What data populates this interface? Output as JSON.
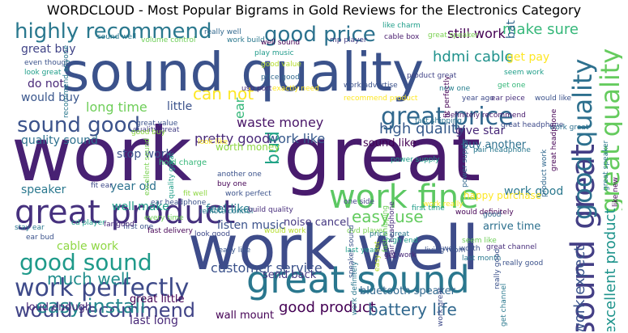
{
  "title": "WORDCLOUD - Most Popular Bigrams in Gold Reviews for the Electronics Category",
  "words": {
    "w1": "sound quality",
    "w2": "work",
    "w3": "great",
    "w4": "work well",
    "w5": "great product",
    "w6": "great sound",
    "w7": "work fine",
    "w8": "work perfectly",
    "w9": "would recommend",
    "w10": "good sound",
    "w11": "sound good",
    "w12": "great price",
    "w13": "highly recommend",
    "w14": "good price",
    "w15": "easy install",
    "w16": "much well",
    "w17": "easy use",
    "w18": "sound great",
    "w19": "good quality",
    "w20": "great quality",
    "w21": "bud",
    "w22": "excellent product",
    "w23": "work expect",
    "w24": "can not",
    "w25": "customer service",
    "w26": "good product",
    "w27": "ear",
    "w28": "battery life",
    "w29": "hdmi cable",
    "w30": "still work",
    "w31": "make sure",
    "w32": "get pay",
    "w33": "high quality",
    "w34": "give star",
    "w35": "waste money",
    "w36": "pretty good",
    "w37": "work like",
    "w38": "stop work",
    "w39": "long time",
    "w40": "little",
    "w41": "quality sound",
    "w42": "year old",
    "w43": "well make",
    "w44": "speaker",
    "w45": "do not",
    "w46": "would buy",
    "w47": "cable work",
    "w48": "work good",
    "w49": "listen music",
    "w50": "feel like",
    "w51": "last long",
    "w52": "great buy",
    "w53": "battery last",
    "w54": "happy purchase",
    "w55": "arrive time",
    "w56": "bluetooth speaker",
    "w57": "sound like",
    "w58": "buy another",
    "w59": "noise cancel",
    "w60": "send back",
    "w61": "wall mount",
    "w62": "great little",
    "w63": "loud enough",
    "w64": "worth money",
    "w65": "hold charge"
  },
  "small": {
    "s1": "sound well",
    "s2": "volume control",
    "s3": "really well",
    "s4": "work build",
    "s5": "well sound",
    "s6": "play music",
    "s7": "good value",
    "s8": "price good",
    "s9": "exactly need",
    "s10": "usb port",
    "s11": "mp player",
    "s12": "work advertise",
    "s13": "recommend product",
    "s14": "like charm",
    "s15": "cable box",
    "s16": "product great",
    "s17": "great speaker",
    "s18": "new one",
    "s19": "year ago",
    "s20": "get one",
    "s21": "seem work",
    "s22": "ear piece",
    "s23": "would like",
    "s24": "definitely recommend",
    "s25": "fast shipping",
    "s26": "power supply",
    "s27": "great headphone",
    "s28": "pair headphone",
    "s29": "work great",
    "s30": "look great",
    "s31": "even though",
    "s32": "quality great",
    "s33": "fit ear",
    "s34": "great value",
    "s35": "good buy",
    "s36": "look like",
    "s37": "another one",
    "s38": "buy one",
    "s39": "work perfect",
    "s40": "use one",
    "s41": "remote control",
    "s42": "fit well",
    "s43": "ear headphone",
    "s44": "every time",
    "s45": "first one",
    "s46": "far good",
    "s47": "stay ear",
    "s48": "cd player",
    "s49": "fast delivery",
    "s50": "look good",
    "s51": "really like",
    "s52": "build quality",
    "s53": "would work",
    "s54": "one side",
    "s55": "dvd player",
    "s56": "price great",
    "s57": "high end",
    "s58": "last year",
    "s59": "get work",
    "s60": "living room",
    "s61": "would definitely",
    "s62": "work really",
    "s63": "good",
    "s64": "first time",
    "s65": "well worth",
    "s66": "seem like",
    "s67": "last month",
    "s68": "great channel",
    "s69": "really good",
    "s70": "work",
    "s71": "speaker sound",
    "s72": "hdmi",
    "s73": "get",
    "s74": "ear bud",
    "s75": "work",
    "s76": "wall mount",
    "s77": "great",
    "s78": "first time",
    "s79": "last month",
    "s80": "cd player",
    "s81": "well worth",
    "s82": "last year",
    "s83": "well",
    "s84": "good",
    "s85": "great",
    "s86": "stay ear",
    "s87": "great",
    "s88": "work"
  },
  "rot": {
    "sr1": "recommend anyone",
    "sr2": "great buy",
    "sr3": "excellent sound",
    "sr4": "fit ear",
    "sr5": "quality great",
    "sr6": "another one",
    "sr7": "fit perfectly",
    "sr8": "fast shipping",
    "sr9": "speaker sound",
    "sr10": "easy set",
    "sr11": "pair headphone",
    "sr12": "work great",
    "sr13": "get channel",
    "sr14": "product work",
    "sr15": "great headphone",
    "sr16": "good quality",
    "sr17": "great speaker",
    "sr18": "like new",
    "sr19": "great price",
    "sr20": "get",
    "sr21": "battery last",
    "sr22": "fast need",
    "sr23": "work expect",
    "sr24": "power supply",
    "sr25": "really good",
    "sr26": "sound great",
    "sr27": "work definitely"
  }
}
